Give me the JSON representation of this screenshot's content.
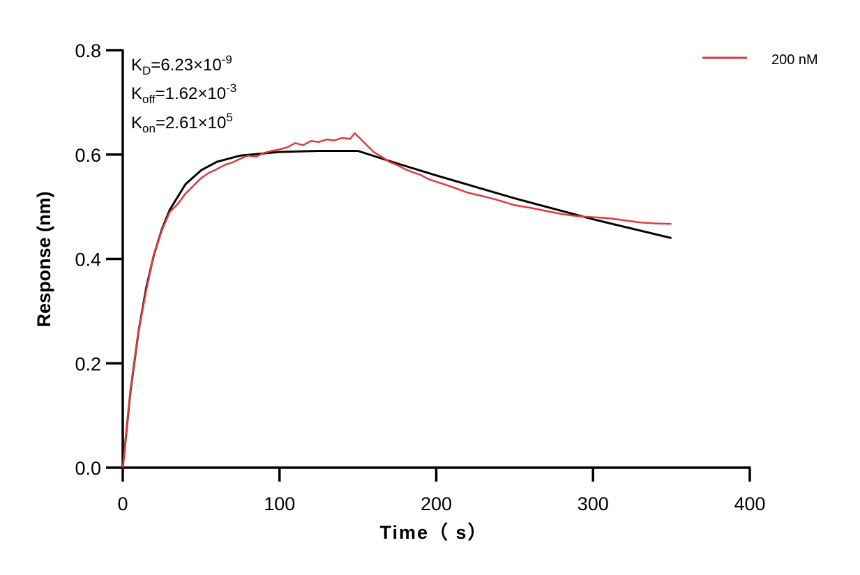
{
  "chart_data": {
    "type": "line",
    "xlabel": "Time（ s）",
    "ylabel": "Response (nm)",
    "xlim": [
      0,
      400
    ],
    "ylim": [
      0,
      0.8
    ],
    "xticks": [
      "0",
      "100",
      "200",
      "300",
      "400"
    ],
    "yticks": [
      "0.0",
      "0.2",
      "0.4",
      "0.6",
      "0.8"
    ],
    "grid": false,
    "legend_placement": "top-right",
    "annotations": [
      {
        "main": "K",
        "sub": "D",
        "text": "=6.23×10",
        "sup": "-9"
      },
      {
        "main": "K",
        "sub": "off",
        "text": "=1.62×10",
        "sup": "-3"
      },
      {
        "main": "K",
        "sub": "on",
        "text": "=2.61×10",
        "sup": "5"
      }
    ],
    "series": [
      {
        "name": "200 nM",
        "color": "#e0393e",
        "x": [
          0,
          5,
          10,
          15,
          20,
          25,
          30,
          35,
          40,
          45,
          50,
          55,
          60,
          65,
          70,
          75,
          80,
          85,
          90,
          95,
          100,
          105,
          110,
          115,
          120,
          125,
          130,
          135,
          140,
          145,
          148,
          150,
          155,
          160,
          165,
          170,
          175,
          180,
          185,
          190,
          195,
          200,
          210,
          220,
          230,
          240,
          250,
          260,
          270,
          280,
          290,
          300,
          310,
          320,
          330,
          340,
          350
        ],
        "y": [
          0,
          0.15,
          0.26,
          0.34,
          0.41,
          0.455,
          0.49,
          0.505,
          0.525,
          0.54,
          0.555,
          0.565,
          0.572,
          0.58,
          0.585,
          0.592,
          0.598,
          0.596,
          0.603,
          0.607,
          0.61,
          0.614,
          0.622,
          0.618,
          0.626,
          0.624,
          0.629,
          0.627,
          0.632,
          0.63,
          0.641,
          0.635,
          0.62,
          0.605,
          0.596,
          0.586,
          0.58,
          0.572,
          0.566,
          0.561,
          0.553,
          0.548,
          0.538,
          0.527,
          0.52,
          0.512,
          0.503,
          0.498,
          0.492,
          0.486,
          0.482,
          0.48,
          0.478,
          0.474,
          0.47,
          0.468,
          0.467
        ]
      },
      {
        "color": "#000000",
        "x": [
          0,
          5,
          10,
          15,
          20,
          25,
          30,
          40,
          50,
          60,
          75,
          100,
          125,
          150,
          175,
          200,
          250,
          300,
          350
        ],
        "y": [
          0,
          0.148,
          0.26,
          0.345,
          0.409,
          0.457,
          0.494,
          0.543,
          0.57,
          0.586,
          0.598,
          0.605,
          0.607,
          0.607,
          0.583,
          0.56,
          0.516,
          0.476,
          0.44
        ]
      }
    ]
  }
}
